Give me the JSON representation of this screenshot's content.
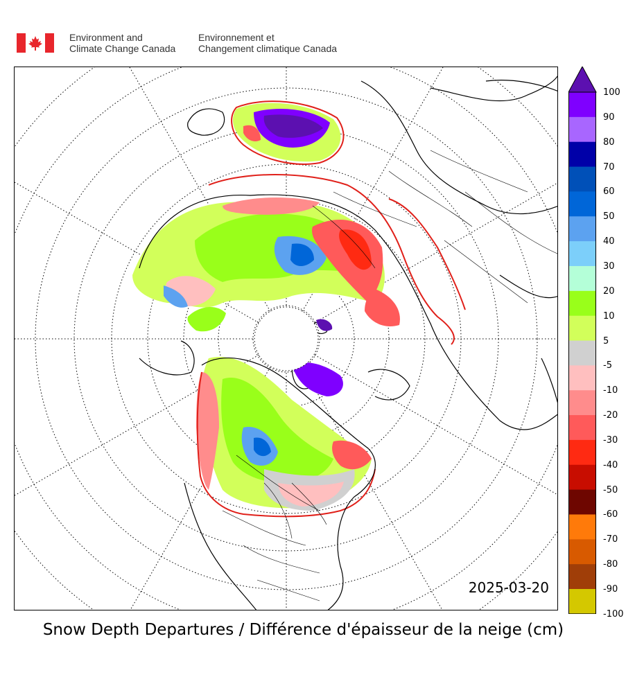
{
  "header": {
    "org_en_line1": "Environment and",
    "org_en_line2": "Climate Change Canada",
    "org_fr_line1": "Environnement et",
    "org_fr_line2": "Changement climatique Canada",
    "flag_icon": "canada-flag-icon",
    "flag_color": "#e8262c"
  },
  "map": {
    "date": "2025-03-20",
    "projection": "north-polar-stereographic",
    "graticule": "dotted"
  },
  "title": "Snow Depth Departures / Différence d'épaisseur de la neige (cm)",
  "colorbar": {
    "labels": [
      "100",
      "90",
      "80",
      "70",
      "60",
      "50",
      "40",
      "30",
      "20",
      "10",
      "5",
      "-5",
      "-10",
      "-20",
      "-30",
      "-40",
      "-50",
      "-60",
      "-70",
      "-80",
      "-90",
      "-100"
    ],
    "colors": [
      "#7f00ff",
      "#a866ff",
      "#0000a8",
      "#0050b8",
      "#0066d8",
      "#5ca2f0",
      "#7ccffa",
      "#b4ffd8",
      "#99ff1a",
      "#d2ff5a",
      "#d0d0d0",
      "#ffbfbf",
      "#ff8c8c",
      "#ff5a5a",
      "#ff2a12",
      "#c80d00",
      "#6e0600",
      "#ff7a0a",
      "#d85a00",
      "#a03e08",
      "#d4c800"
    ],
    "extend_color": "#5c10b0"
  }
}
